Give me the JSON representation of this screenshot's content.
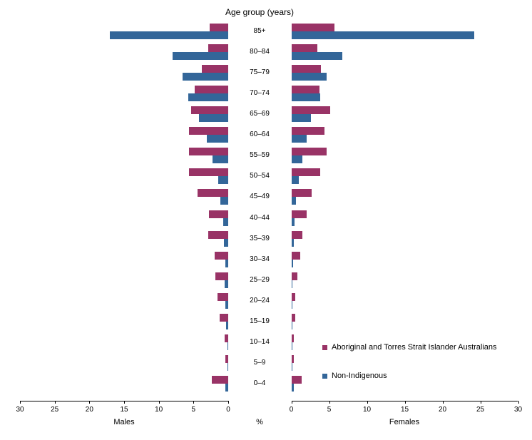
{
  "title": "Age group (years)",
  "axis": {
    "left_label": "Males",
    "right_label": "Females",
    "center_label": "%",
    "ticks_left": [
      30,
      25,
      20,
      15,
      10,
      5,
      0
    ],
    "ticks_right": [
      0,
      5,
      10,
      15,
      20,
      25,
      30
    ],
    "max": 30
  },
  "legend": {
    "items": [
      {
        "label": "Aboriginal and Torres Strait Islander Australians",
        "color": "#993366"
      },
      {
        "label": "Non-Indigenous",
        "color": "#336699"
      }
    ]
  },
  "colors": {
    "indigenous": "#993366",
    "non_indigenous": "#336699",
    "axis": "#000000"
  },
  "chart_data": {
    "type": "bar",
    "subtype": "population-pyramid",
    "title": "Age group (years)",
    "xlabel": "%",
    "left_panel_label": "Males",
    "right_panel_label": "Females",
    "xlim_left": [
      30,
      0
    ],
    "xlim_right": [
      0,
      30
    ],
    "grid": false,
    "legend_position": "lower-right",
    "categories": [
      "85+",
      "80–84",
      "75–79",
      "70–74",
      "65–69",
      "60–64",
      "55–59",
      "50–54",
      "45–49",
      "40–44",
      "35–39",
      "30–34",
      "25–29",
      "20–24",
      "15–19",
      "10–14",
      "5–9",
      "0–4"
    ],
    "series": [
      {
        "name": "Males – Aboriginal and Torres Strait Islander Australians",
        "side": "left",
        "color": "#993366",
        "values": [
          2.7,
          2.9,
          3.8,
          4.8,
          5.3,
          5.7,
          5.6,
          5.7,
          4.4,
          2.8,
          2.9,
          2.0,
          1.8,
          1.5,
          1.2,
          0.5,
          0.4,
          2.4
        ]
      },
      {
        "name": "Males – Non-Indigenous",
        "side": "left",
        "color": "#336699",
        "values": [
          17.1,
          8.0,
          6.6,
          5.8,
          4.2,
          3.1,
          2.3,
          1.4,
          1.1,
          0.7,
          0.6,
          0.4,
          0.5,
          0.4,
          0.3,
          0.15,
          0.1,
          0.45
        ]
      },
      {
        "name": "Females – Aboriginal and Torres Strait Islander Australians",
        "side": "right",
        "color": "#993366",
        "values": [
          5.7,
          3.4,
          3.9,
          3.7,
          5.1,
          4.4,
          4.7,
          3.8,
          2.7,
          2.0,
          1.5,
          1.2,
          0.8,
          0.5,
          0.55,
          0.35,
          0.3,
          1.4
        ]
      },
      {
        "name": "Females – Non-Indigenous",
        "side": "right",
        "color": "#336699",
        "values": [
          24.2,
          6.7,
          4.7,
          3.8,
          2.6,
          2.0,
          1.5,
          1.0,
          0.6,
          0.4,
          0.35,
          0.2,
          0.15,
          0.1,
          0.15,
          0.1,
          0.1,
          0.35
        ]
      }
    ]
  }
}
